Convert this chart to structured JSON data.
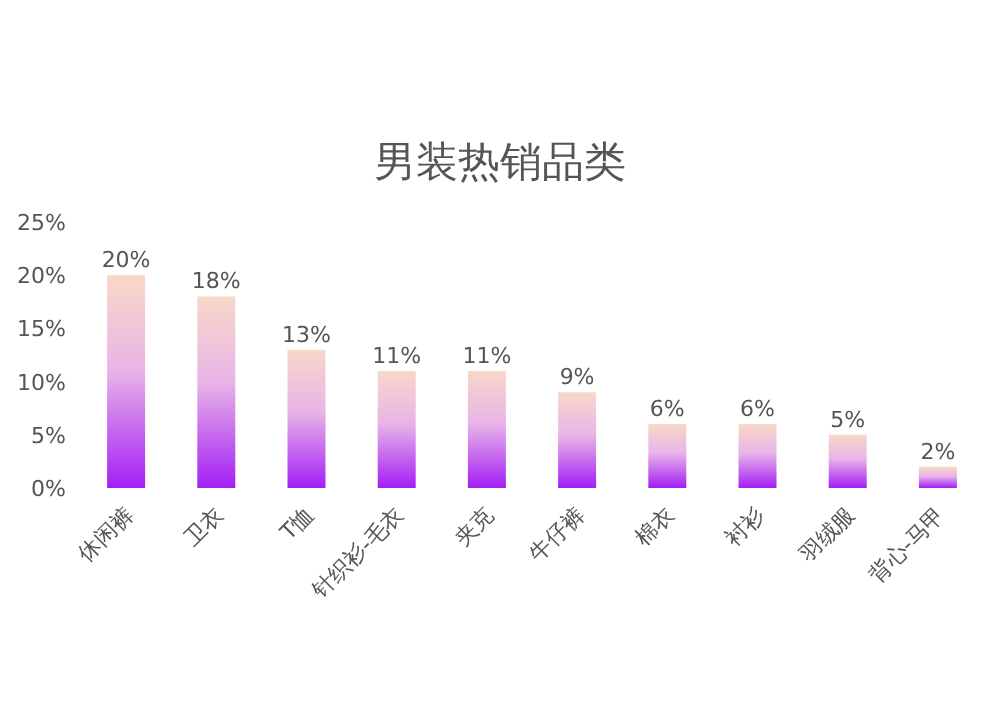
{
  "chart_data": {
    "type": "bar",
    "title": "男装热销品类",
    "categories": [
      "休闲裤",
      "卫衣",
      "T恤",
      "针织衫-毛衣",
      "夹克",
      "牛仔裤",
      "棉衣",
      "衬衫",
      "羽绒服",
      "背心-马甲"
    ],
    "values": [
      20,
      18,
      13,
      11,
      11,
      9,
      6,
      6,
      5,
      2
    ],
    "value_labels": [
      "20%",
      "18%",
      "13%",
      "11%",
      "11%",
      "9%",
      "6%",
      "6%",
      "5%",
      "2%"
    ],
    "color": "#a31ff5",
    "ylim": [
      0,
      25
    ],
    "yticks": [
      {
        "value": 0,
        "label": "0%"
      },
      {
        "value": 5,
        "label": "5%"
      },
      {
        "value": 10,
        "label": "10%"
      },
      {
        "value": 15,
        "label": "15%"
      },
      {
        "value": 20,
        "label": "20%"
      },
      {
        "value": 25,
        "label": "25%"
      }
    ]
  }
}
